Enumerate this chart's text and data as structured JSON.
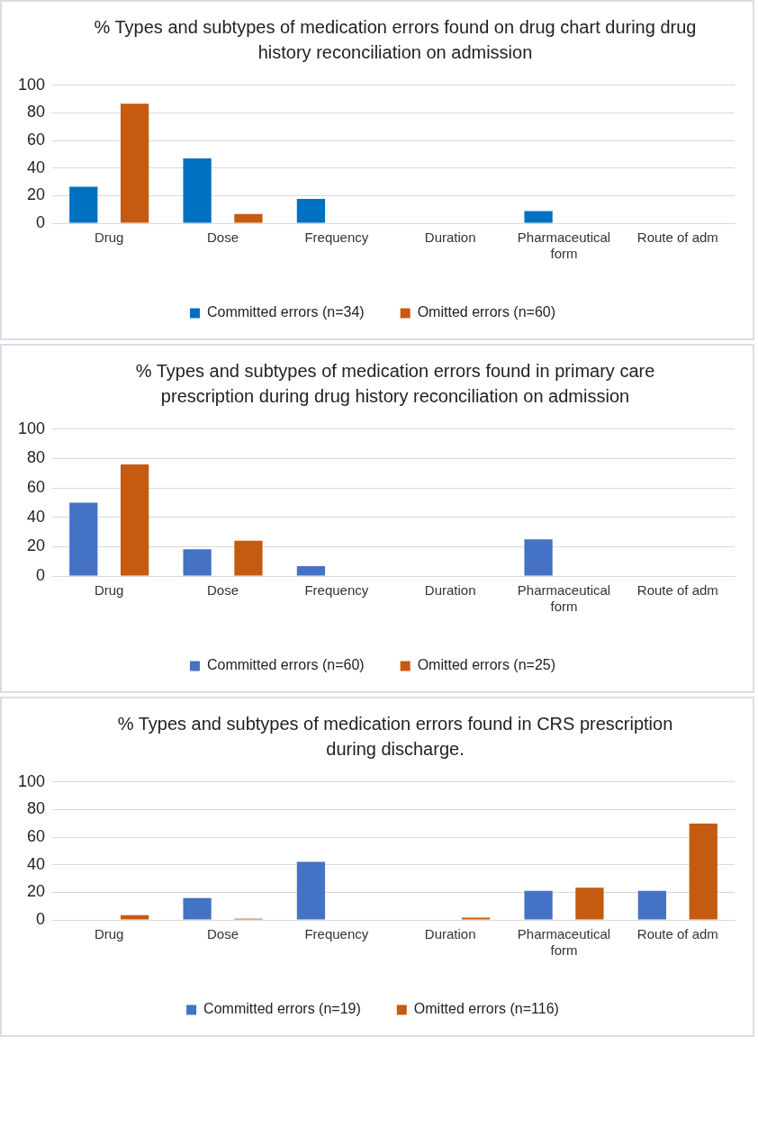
{
  "chart_data": [
    {
      "type": "bar",
      "title": "% Types and subtypes of medication errors found on drug chart during drug history reconciliation on  admission",
      "categories": [
        "Drug",
        "Dose",
        "Frequency",
        "Duration",
        "Pharmaceutical form",
        "Route of adm"
      ],
      "series": [
        {
          "name": "Committed errors (n=34)",
          "color": "#0070c0",
          "values": [
            26.5,
            47,
            17.6,
            0,
            8.8,
            0
          ]
        },
        {
          "name": "Omitted errors (n=60)",
          "color": "#c55a11",
          "values": [
            86.7,
            6.7,
            0,
            0,
            0,
            0
          ]
        }
      ],
      "ylim": [
        0,
        100
      ],
      "yticks": [
        0,
        20,
        40,
        60,
        80,
        100
      ],
      "grid": "y",
      "legend": "bottom"
    },
    {
      "type": "bar",
      "title": "% Types and subtypes of medication errors found in primary care prescription during drug history reconciliation on admission",
      "categories": [
        "Drug",
        "Dose",
        "Frequency",
        "Duration",
        "Pharmaceutical form",
        "Route of adm"
      ],
      "series": [
        {
          "name": "Committed errors (n=60)",
          "color": "#4472c4",
          "values": [
            50,
            18.3,
            6.7,
            0,
            25,
            0
          ]
        },
        {
          "name": "Omitted errors (n=25)",
          "color": "#c55a11",
          "values": [
            76,
            24,
            0,
            0,
            0,
            0
          ]
        }
      ],
      "ylim": [
        0,
        100
      ],
      "yticks": [
        0,
        20,
        40,
        60,
        80,
        100
      ],
      "grid": "y",
      "legend": "bottom"
    },
    {
      "type": "bar",
      "title": "% Types and subtypes of medication errors found in CRS prescription during discharge.",
      "categories": [
        "Drug",
        "Dose",
        "Frequency",
        "Duration",
        "Pharmaceutical form",
        "Route of adm"
      ],
      "series": [
        {
          "name": "Committed errors (n=19)",
          "color": "#4472c4",
          "values": [
            0,
            15.8,
            42.1,
            0,
            21.1,
            21.1
          ]
        },
        {
          "name": "Omitted errors (n=116)",
          "color": "#c55a11",
          "values": [
            3.4,
            0.9,
            0,
            1.7,
            23.3,
            69.8
          ]
        }
      ],
      "ylim": [
        0,
        100
      ],
      "yticks": [
        0,
        20,
        40,
        60,
        80,
        100
      ],
      "grid": "y",
      "legend": "bottom"
    }
  ]
}
